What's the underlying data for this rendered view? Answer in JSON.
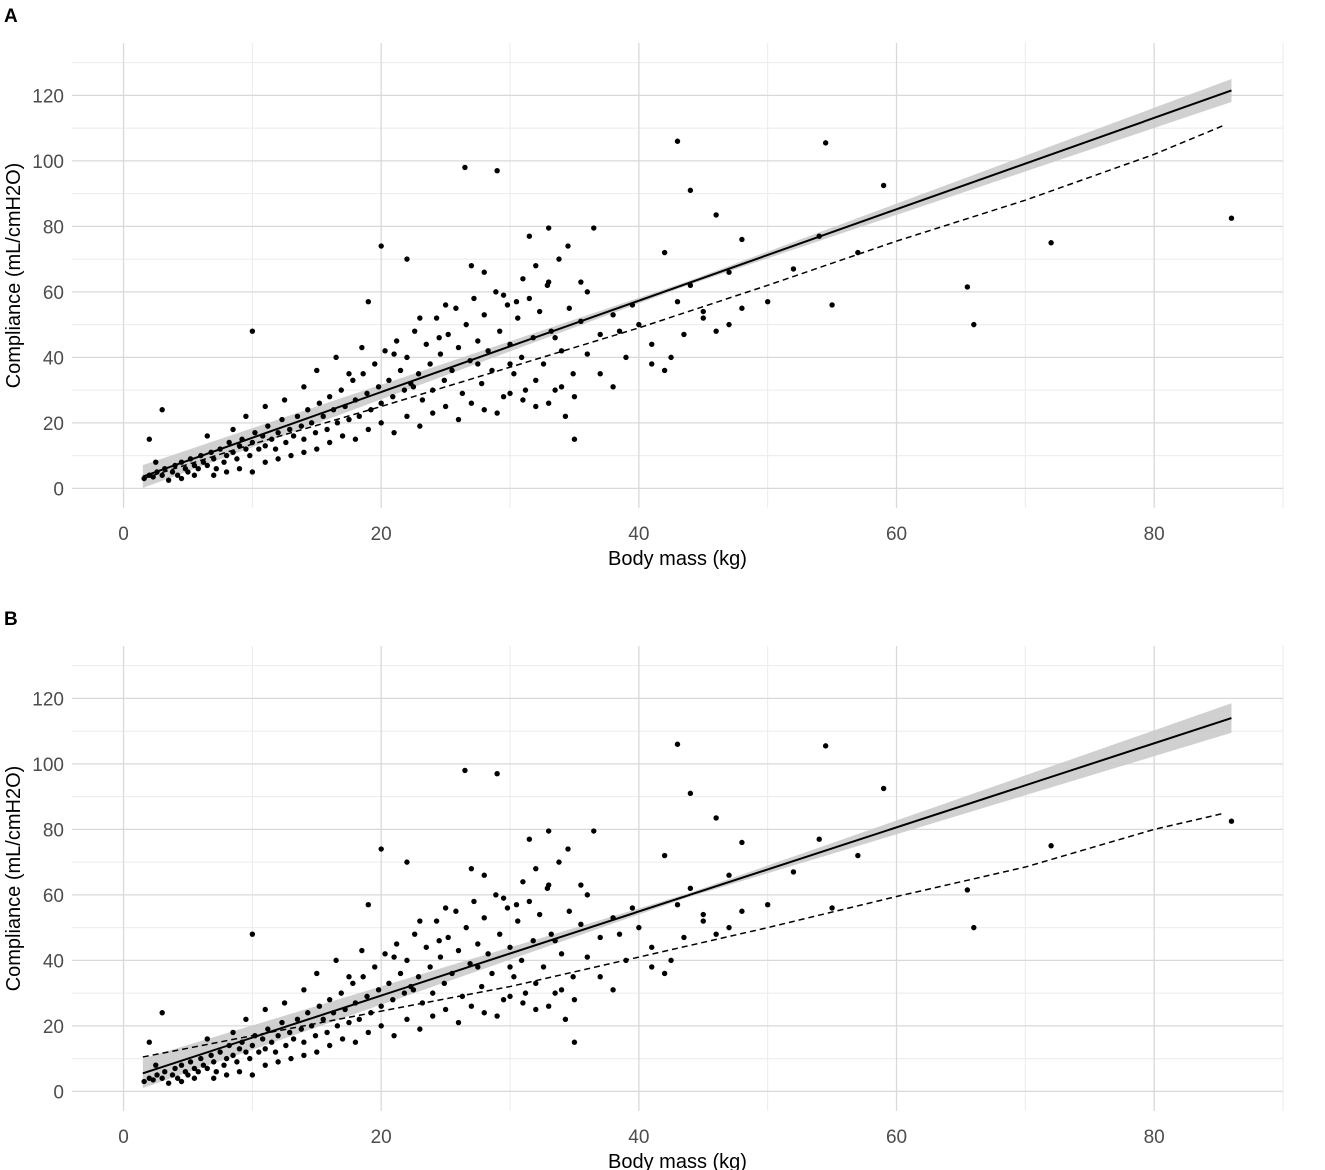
{
  "chart_data": [
    {
      "panel_label": "A",
      "type": "scatter",
      "xlabel": "Body mass (kg)",
      "ylabel": "Compliance (mL/cmH2O)",
      "xlim": [
        -4,
        90
      ],
      "ylim": [
        -6,
        136
      ],
      "x_ticks": [
        0,
        20,
        40,
        60,
        80
      ],
      "y_ticks": [
        0,
        20,
        40,
        60,
        80,
        100,
        120
      ],
      "grid": true,
      "points_note": "",
      "fit_solid": {
        "x": [
          1.5,
          86
        ],
        "y": [
          3.6,
          121.5
        ],
        "style": "solid",
        "ci_halfwidth_at_max": 3.5
      },
      "fit_dashed": {
        "x": [
          1.5,
          10,
          20,
          30,
          40,
          50,
          60,
          70,
          80,
          85.5
        ],
        "y": [
          3,
          13.5,
          25,
          37,
          49,
          62,
          75.5,
          88,
          102,
          111
        ],
        "style": "dashed"
      }
    },
    {
      "panel_label": "B",
      "type": "scatter",
      "xlabel": "Body mass (kg)",
      "ylabel": "Compliance (mL/cmH2O)",
      "xlim": [
        -4,
        90
      ],
      "ylim": [
        -6,
        136
      ],
      "x_ticks": [
        0,
        20,
        40,
        60,
        80
      ],
      "y_ticks": [
        0,
        20,
        40,
        60,
        80,
        100,
        120
      ],
      "grid": true,
      "fit_solid": {
        "x": [
          1.5,
          86
        ],
        "y": [
          5.5,
          114
        ],
        "style": "solid",
        "ci_halfwidth_at_max": 4.5
      },
      "fit_dashed": {
        "x": [
          1.5,
          10,
          20,
          30,
          40,
          50,
          60,
          70,
          80,
          85.5
        ],
        "y": [
          10.5,
          17,
          24.5,
          32,
          41,
          50,
          59.5,
          68.5,
          80,
          85
        ],
        "style": "dashed"
      }
    }
  ],
  "scatter_points": [
    [
      1.6,
      3
    ],
    [
      2,
      4
    ],
    [
      2.3,
      3.5
    ],
    [
      2.6,
      5
    ],
    [
      3,
      4
    ],
    [
      3.2,
      6
    ],
    [
      3.5,
      2.5
    ],
    [
      3.8,
      5
    ],
    [
      4,
      7
    ],
    [
      4.2,
      4
    ],
    [
      4.5,
      8
    ],
    [
      4.8,
      6
    ],
    [
      5,
      5
    ],
    [
      5.2,
      9
    ],
    [
      5.5,
      7
    ],
    [
      5.8,
      6
    ],
    [
      6,
      10
    ],
    [
      6.2,
      8
    ],
    [
      6.5,
      7
    ],
    [
      6.8,
      11
    ],
    [
      7,
      9
    ],
    [
      7.2,
      6
    ],
    [
      7.5,
      12
    ],
    [
      7.8,
      8
    ],
    [
      8,
      10
    ],
    [
      8.2,
      14
    ],
    [
      8.5,
      11
    ],
    [
      8.8,
      9
    ],
    [
      9,
      13
    ],
    [
      9.2,
      15
    ],
    [
      9.5,
      12
    ],
    [
      9.8,
      10
    ],
    [
      10,
      14
    ],
    [
      10.2,
      17
    ],
    [
      10.5,
      12
    ],
    [
      10.8,
      16
    ],
    [
      11,
      13
    ],
    [
      11.2,
      19
    ],
    [
      11.5,
      15
    ],
    [
      11.8,
      12
    ],
    [
      12,
      17
    ],
    [
      12.3,
      21
    ],
    [
      12.6,
      14
    ],
    [
      12.9,
      18
    ],
    [
      13.2,
      16
    ],
    [
      13.5,
      22
    ],
    [
      13.8,
      19
    ],
    [
      14,
      15
    ],
    [
      14.3,
      24
    ],
    [
      14.6,
      20
    ],
    [
      14.9,
      17
    ],
    [
      15.2,
      26
    ],
    [
      15.5,
      22
    ],
    [
      15.8,
      18
    ],
    [
      16,
      28
    ],
    [
      16.3,
      24
    ],
    [
      16.6,
      20
    ],
    [
      16.9,
      30
    ],
    [
      17.2,
      25
    ],
    [
      17.5,
      21
    ],
    [
      17.8,
      33
    ],
    [
      18,
      27
    ],
    [
      18.3,
      22
    ],
    [
      18.6,
      35
    ],
    [
      18.9,
      29
    ],
    [
      19.2,
      24
    ],
    [
      19.5,
      38
    ],
    [
      19.8,
      31
    ],
    [
      20,
      26
    ],
    [
      20.3,
      42
    ],
    [
      20.6,
      33
    ],
    [
      20.9,
      28
    ],
    [
      21.2,
      45
    ],
    [
      21.5,
      36
    ],
    [
      21.8,
      30
    ],
    [
      22,
      40
    ],
    [
      22.3,
      32
    ],
    [
      22.6,
      48
    ],
    [
      22.9,
      35
    ],
    [
      23.2,
      27
    ],
    [
      23.5,
      44
    ],
    [
      23.8,
      38
    ],
    [
      24,
      30
    ],
    [
      24.3,
      52
    ],
    [
      24.6,
      41
    ],
    [
      24.9,
      33
    ],
    [
      25.2,
      47
    ],
    [
      25.5,
      36
    ],
    [
      25.8,
      55
    ],
    [
      26,
      43
    ],
    [
      26.3,
      29
    ],
    [
      26.6,
      50
    ],
    [
      26.9,
      39
    ],
    [
      27.2,
      58
    ],
    [
      27.5,
      45
    ],
    [
      27.8,
      32
    ],
    [
      28,
      53
    ],
    [
      28.3,
      42
    ],
    [
      28.6,
      36
    ],
    [
      28.9,
      60
    ],
    [
      29.2,
      48
    ],
    [
      29.5,
      28
    ],
    [
      29.8,
      56
    ],
    [
      30,
      44
    ],
    [
      30.3,
      35
    ],
    [
      30.6,
      52
    ],
    [
      30.9,
      40
    ],
    [
      31.2,
      30
    ],
    [
      31.5,
      58
    ],
    [
      31.8,
      46
    ],
    [
      32,
      25
    ],
    [
      32.3,
      54
    ],
    [
      32.6,
      38
    ],
    [
      32.9,
      62
    ],
    [
      33.2,
      48
    ],
    [
      33.5,
      30
    ],
    [
      33.8,
      70
    ],
    [
      34,
      42
    ],
    [
      34.3,
      22
    ],
    [
      34.6,
      55
    ],
    [
      34.9,
      35
    ],
    [
      35,
      15
    ],
    [
      36,
      60
    ],
    [
      37,
      47
    ],
    [
      38,
      53
    ],
    [
      39,
      40
    ],
    [
      40,
      50
    ],
    [
      41,
      44
    ],
    [
      42,
      36
    ],
    [
      43,
      57
    ],
    [
      44,
      62
    ],
    [
      45,
      52
    ],
    [
      46,
      48
    ],
    [
      47,
      66
    ],
    [
      48,
      55
    ],
    [
      2,
      15
    ],
    [
      3,
      24
    ],
    [
      10,
      48
    ],
    [
      20,
      74
    ],
    [
      22,
      70
    ],
    [
      26.5,
      98
    ],
    [
      29,
      97
    ],
    [
      31.5,
      77
    ],
    [
      33,
      79.5
    ],
    [
      34.5,
      74
    ],
    [
      36.5,
      79.5
    ],
    [
      43,
      106
    ],
    [
      44,
      91
    ],
    [
      46,
      83.5
    ],
    [
      48,
      76
    ],
    [
      42,
      72
    ],
    [
      54.5,
      105.5
    ],
    [
      59,
      92.5
    ],
    [
      54,
      77
    ],
    [
      57,
      72
    ],
    [
      55,
      56
    ],
    [
      50,
      57
    ],
    [
      52,
      67
    ],
    [
      65.5,
      61.5
    ],
    [
      66,
      50
    ],
    [
      72,
      75
    ],
    [
      86,
      82.5
    ],
    [
      6.5,
      16
    ],
    [
      8.5,
      18
    ],
    [
      9.5,
      22
    ],
    [
      11,
      25
    ],
    [
      12.5,
      27
    ],
    [
      14,
      31
    ],
    [
      15,
      36
    ],
    [
      16.5,
      40
    ],
    [
      17.5,
      35
    ],
    [
      18.5,
      43
    ],
    [
      19,
      57
    ],
    [
      21,
      41
    ],
    [
      23,
      52
    ],
    [
      24.5,
      46
    ],
    [
      25,
      56
    ],
    [
      27,
      68
    ],
    [
      28,
      66
    ],
    [
      29.5,
      59
    ],
    [
      30.5,
      57
    ],
    [
      31,
      64
    ],
    [
      32,
      68
    ],
    [
      33,
      63
    ],
    [
      35.5,
      63
    ],
    [
      37,
      35
    ],
    [
      38.5,
      48
    ],
    [
      39.5,
      56
    ],
    [
      41,
      38
    ],
    [
      42.5,
      40
    ],
    [
      43.5,
      47
    ],
    [
      45,
      54
    ],
    [
      47,
      50
    ],
    [
      2.5,
      8
    ],
    [
      4.5,
      3
    ],
    [
      5.5,
      4
    ],
    [
      7,
      4
    ],
    [
      8,
      5
    ],
    [
      9,
      6
    ],
    [
      10,
      5
    ],
    [
      11,
      8
    ],
    [
      12,
      9
    ],
    [
      13,
      10
    ],
    [
      14,
      11
    ],
    [
      15,
      12
    ],
    [
      16,
      14
    ],
    [
      17,
      16
    ],
    [
      18,
      15
    ],
    [
      19,
      18
    ],
    [
      20,
      20
    ],
    [
      21,
      17
    ],
    [
      22,
      22
    ],
    [
      23,
      19
    ],
    [
      24,
      23
    ],
    [
      25,
      25
    ],
    [
      26,
      21
    ],
    [
      27,
      26
    ],
    [
      28,
      24
    ],
    [
      29,
      23
    ],
    [
      30,
      29
    ],
    [
      31,
      27
    ],
    [
      32,
      33
    ],
    [
      33,
      26
    ],
    [
      34,
      31
    ],
    [
      35,
      28
    ],
    [
      22.5,
      31
    ],
    [
      27.5,
      38
    ],
    [
      30,
      38
    ],
    [
      33.5,
      46
    ],
    [
      35.5,
      51
    ],
    [
      36,
      41
    ],
    [
      38,
      31
    ]
  ]
}
